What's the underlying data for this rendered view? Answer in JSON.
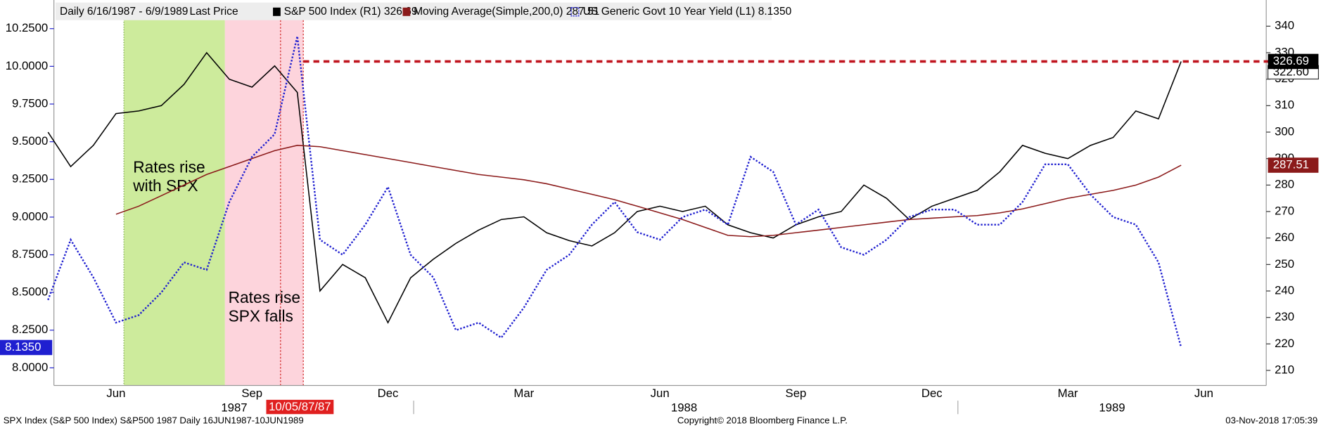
{
  "chart_data": {
    "type": "line",
    "legend_header": [
      "Daily 6/16/1987 - 6/9/1989",
      "Last Price"
    ],
    "categories": [
      null,
      null,
      null,
      "Jun",
      null,
      null,
      null,
      null,
      null,
      "Sep",
      null,
      null,
      null,
      null,
      null,
      "Dec",
      null,
      null,
      null,
      null,
      null,
      "Mar",
      null,
      null,
      null,
      null,
      null,
      "Jun",
      null,
      null,
      null,
      null,
      null,
      "Sep",
      null,
      null,
      null,
      null,
      null,
      "Dec",
      null,
      null,
      null,
      null,
      null,
      "Mar",
      null,
      null,
      null,
      null,
      null,
      "Jun"
    ],
    "year_labels": [
      "1987",
      "1988",
      "1989"
    ],
    "series": [
      {
        "name": "S&P 500 Index  (R1) 326.69",
        "color": "#000000",
        "axis": "y2",
        "values": [
          300,
          287,
          295,
          307,
          308,
          310,
          318,
          330,
          320,
          317,
          325,
          315,
          240,
          250,
          245,
          228,
          245,
          252,
          258,
          263,
          267,
          268,
          262,
          259,
          257,
          262,
          270,
          272,
          270,
          272,
          265,
          262,
          260,
          265,
          268,
          270,
          280,
          275,
          267,
          272,
          275,
          278,
          285,
          295,
          292,
          290,
          295,
          298,
          308,
          305,
          326.69,
          null
        ]
      },
      {
        "name": "Moving Average(Simple,200,0)  287.51",
        "color": "#8b1a1a",
        "axis": "y2",
        "values": [
          null,
          null,
          null,
          269,
          272,
          276,
          280,
          284,
          287,
          290,
          293,
          295,
          294.5,
          293,
          291.5,
          290,
          288.5,
          287,
          285.5,
          284,
          283,
          282,
          280.5,
          278.5,
          276.5,
          274.5,
          272,
          269.5,
          267,
          264,
          261,
          260.5,
          261,
          262,
          263,
          264,
          265,
          266,
          267,
          267.5,
          268,
          268.5,
          269.5,
          271,
          273,
          275,
          276.5,
          278,
          280,
          283,
          287.51,
          null
        ]
      },
      {
        "name": "US Generic Govt 10 Year Yield  (L1) 8.1350",
        "color": "#1f1fd0",
        "axis": "y",
        "values": [
          8.45,
          8.85,
          8.6,
          8.3,
          8.35,
          8.5,
          8.7,
          8.65,
          9.1,
          9.4,
          9.55,
          10.2,
          8.85,
          8.75,
          8.95,
          9.2,
          8.75,
          8.6,
          8.25,
          8.3,
          8.2,
          8.4,
          8.65,
          8.75,
          8.95,
          9.1,
          8.9,
          8.85,
          9.0,
          9.05,
          8.95,
          9.4,
          9.3,
          8.95,
          9.05,
          8.8,
          8.75,
          8.85,
          9.0,
          9.05,
          9.05,
          8.95,
          8.95,
          9.1,
          9.35,
          9.35,
          9.15,
          9.0,
          8.95,
          8.7,
          8.135,
          null
        ],
        "last_label": "8.1350"
      }
    ],
    "ylim": [
      7.883,
      10.44
    ],
    "yticks": [
      {
        "value": 8,
        "label": "8.0000"
      },
      {
        "value": 8.25,
        "label": "8.2500"
      },
      {
        "value": 8.5,
        "label": "8.5000"
      },
      {
        "value": 8.75,
        "label": "8.7500"
      },
      {
        "value": 9,
        "label": "9.0000"
      },
      {
        "value": 9.25,
        "label": "9.2500"
      },
      {
        "value": 9.5,
        "label": "9.5000"
      },
      {
        "value": 9.75,
        "label": "9.7500"
      },
      {
        "value": 10,
        "label": "10.0000"
      },
      {
        "value": 10.25,
        "label": "10.2500"
      }
    ],
    "y2lim": [
      204.3,
      349.9
    ],
    "y2ticks": [
      210,
      220,
      230,
      240,
      250,
      260,
      270,
      280,
      290,
      300,
      310,
      320,
      330,
      340
    ],
    "right_flag": "322.60",
    "annotations": [
      [
        "Rates rise",
        "with SPX"
      ],
      [
        "Rates rise",
        "SPX falls"
      ]
    ],
    "date_flag": "10/05/87/87",
    "footer": [
      "SPX Index (S&P 500 Index) S&P500 1987  Daily 16JUN1987-10JUN1989",
      "Copyright© 2018 Bloomberg Finance L.P.",
      "03-Nov-2018 17:05:39"
    ]
  }
}
